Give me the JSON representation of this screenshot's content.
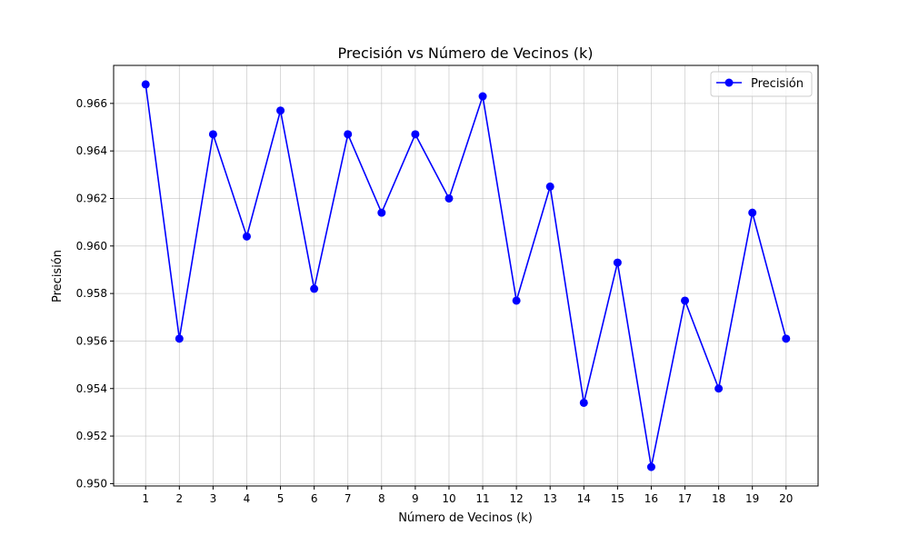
{
  "chart_data": {
    "type": "line",
    "title": "Precisión vs Número de Vecinos (k)",
    "xlabel": "Número de Vecinos (k)",
    "ylabel": "Precisión",
    "x": [
      1,
      2,
      3,
      4,
      5,
      6,
      7,
      8,
      9,
      10,
      11,
      12,
      13,
      14,
      15,
      16,
      17,
      18,
      19,
      20
    ],
    "x_tick_labels": [
      "1",
      "2",
      "3",
      "4",
      "5",
      "6",
      "7",
      "8",
      "9",
      "10",
      "11",
      "12",
      "13",
      "14",
      "15",
      "16",
      "17",
      "18",
      "19",
      "20"
    ],
    "y_tick_labels": [
      "0.950",
      "0.952",
      "0.954",
      "0.956",
      "0.958",
      "0.960",
      "0.962",
      "0.964",
      "0.966"
    ],
    "y_ticks": [
      0.95,
      0.952,
      0.954,
      0.956,
      0.958,
      0.96,
      0.962,
      0.964,
      0.966
    ],
    "xlim": [
      0.05,
      20.95
    ],
    "ylim": [
      0.9499,
      0.9676
    ],
    "grid": true,
    "legend_position": "upper right",
    "series": [
      {
        "name": "Precisión",
        "color": "#0000ff",
        "marker": "circle",
        "values": [
          0.9668,
          0.9561,
          0.9647,
          0.9604,
          0.9657,
          0.9582,
          0.9647,
          0.9614,
          0.9647,
          0.962,
          0.9663,
          0.9577,
          0.9625,
          0.9534,
          0.9593,
          0.9507,
          0.9577,
          0.954,
          0.9614,
          0.9561
        ]
      }
    ]
  }
}
